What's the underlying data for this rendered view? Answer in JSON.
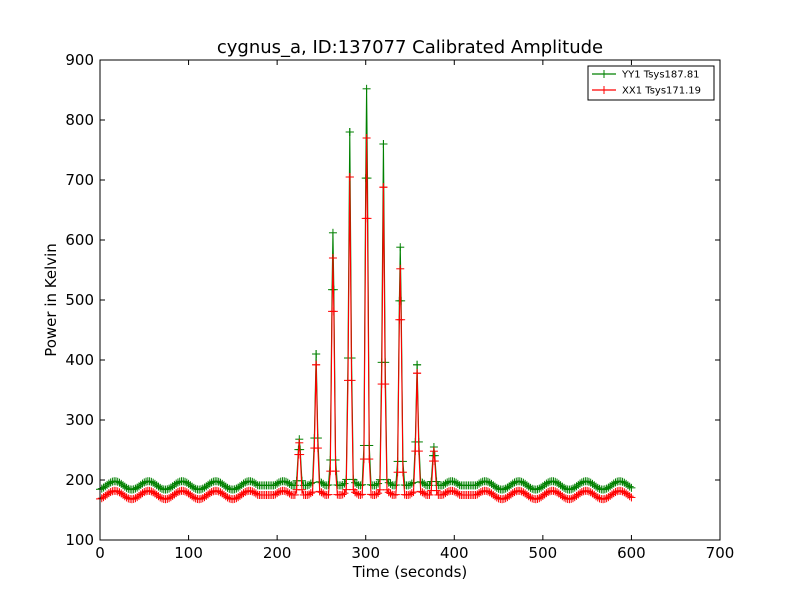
{
  "chart_data": {
    "type": "line",
    "title": "cygnus_a, ID:137077 Calibrated Amplitude",
    "xlabel": "Time (seconds)",
    "ylabel": "Power in Kelvin",
    "xlim": [
      0,
      700
    ],
    "ylim": [
      100,
      900
    ],
    "xticks": [
      0,
      100,
      200,
      300,
      400,
      500,
      600,
      700
    ],
    "yticks": [
      100,
      200,
      300,
      400,
      500,
      600,
      700,
      800,
      900
    ],
    "grid": false,
    "legend_position": "top-right",
    "series": [
      {
        "name": "YY1 Tsys187.81",
        "color": "#008000",
        "marker": "+",
        "baseline": {
          "mean": 191,
          "amplitude": 7,
          "period_seconds": 38
        },
        "x_range": [
          0,
          601
        ],
        "sample_step_seconds": 2,
        "peaks": [
          {
            "x": 225,
            "y": 268
          },
          {
            "x": 244,
            "y": 410
          },
          {
            "x": 263,
            "y": 612
          },
          {
            "x": 282,
            "y": 780
          },
          {
            "x": 301,
            "y": 852
          },
          {
            "x": 320,
            "y": 760
          },
          {
            "x": 339,
            "y": 588
          },
          {
            "x": 358,
            "y": 392
          },
          {
            "x": 377,
            "y": 255
          }
        ]
      },
      {
        "name": "XX1 Tsys171.19",
        "color": "#ff0000",
        "marker": "+",
        "baseline": {
          "mean": 175,
          "amplitude": 7,
          "period_seconds": 38
        },
        "x_range": [
          0,
          601
        ],
        "sample_step_seconds": 2,
        "peaks": [
          {
            "x": 225,
            "y": 262
          },
          {
            "x": 244,
            "y": 392
          },
          {
            "x": 263,
            "y": 570
          },
          {
            "x": 282,
            "y": 705
          },
          {
            "x": 301,
            "y": 770
          },
          {
            "x": 320,
            "y": 688
          },
          {
            "x": 339,
            "y": 552
          },
          {
            "x": 358,
            "y": 378
          },
          {
            "x": 377,
            "y": 248
          }
        ]
      }
    ]
  }
}
